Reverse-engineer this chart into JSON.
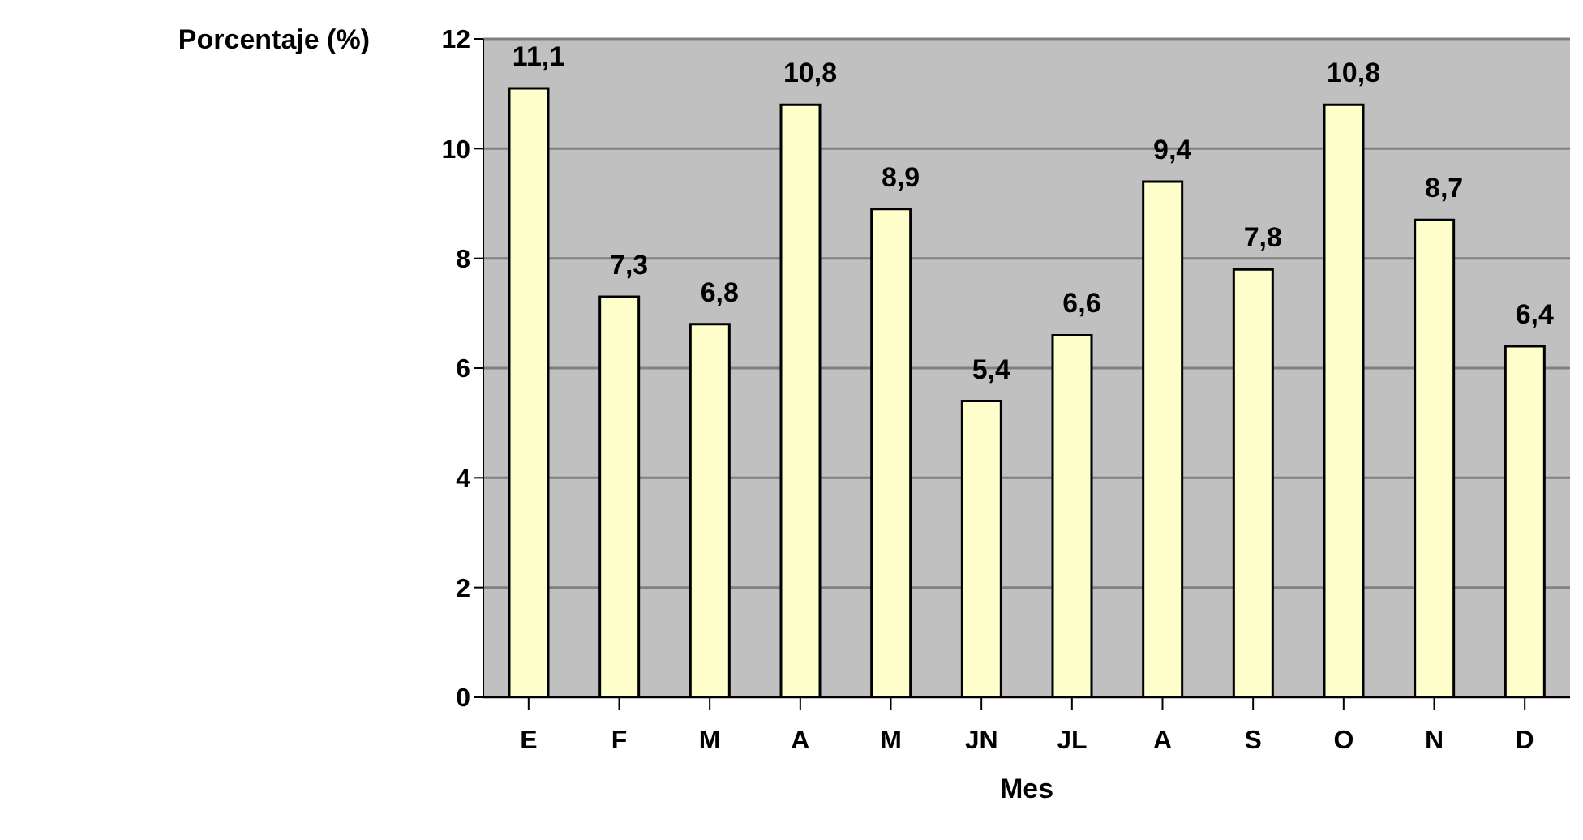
{
  "chart_data": {
    "type": "bar",
    "xlabel": "Mes",
    "ylabel": "Porcentaje (%)",
    "categories": [
      "E",
      "F",
      "M",
      "A",
      "M",
      "JN",
      "JL",
      "A",
      "S",
      "O",
      "N",
      "D"
    ],
    "values": [
      11.1,
      7.3,
      6.8,
      10.8,
      8.9,
      5.4,
      6.6,
      9.4,
      7.8,
      10.8,
      8.7,
      6.4
    ],
    "value_labels": [
      "11,1",
      "7,3",
      "6,8",
      "10,8",
      "8,9",
      "5,4",
      "6,6",
      "9,4",
      "7,8",
      "10,8",
      "8,7",
      "6,4"
    ],
    "color": "#ffffcc",
    "ylim": [
      0,
      12
    ],
    "yticks": [
      0,
      2,
      4,
      6,
      8,
      10,
      12
    ],
    "grid": "y"
  }
}
